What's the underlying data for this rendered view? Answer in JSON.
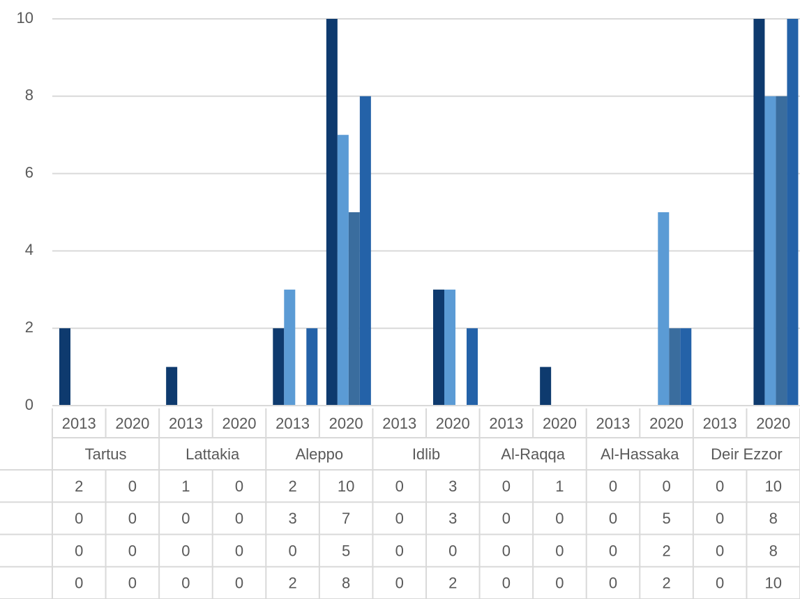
{
  "chart_data": {
    "type": "bar",
    "categories": [
      "2013",
      "2020",
      "2013",
      "2020",
      "2013",
      "2020",
      "2013",
      "2020",
      "2013",
      "2020",
      "2013",
      "2020",
      "2013",
      "2020"
    ],
    "groups": [
      "Tartus",
      "Lattakia",
      "Aleppo",
      "Idlib",
      "Al-Raqqa",
      "Al-Hassaka",
      "Deir Ezzor"
    ],
    "series": [
      {
        "color": "#0e3a6e",
        "values": [
          2,
          0,
          1,
          0,
          2,
          10,
          0,
          3,
          0,
          1,
          0,
          0,
          0,
          10
        ]
      },
      {
        "color": "#5b9bd5",
        "values": [
          0,
          0,
          0,
          0,
          3,
          7,
          0,
          3,
          0,
          0,
          0,
          5,
          0,
          8
        ]
      },
      {
        "color": "#3a6d9e",
        "values": [
          0,
          0,
          0,
          0,
          0,
          5,
          0,
          0,
          0,
          0,
          0,
          2,
          0,
          8
        ]
      },
      {
        "color": "#2462a8",
        "values": [
          0,
          0,
          0,
          0,
          2,
          8,
          0,
          2,
          0,
          0,
          0,
          2,
          0,
          10
        ]
      }
    ],
    "ylim": [
      0,
      10
    ],
    "yticks": [
      0,
      2,
      4,
      6,
      8,
      10
    ],
    "grid": true
  }
}
